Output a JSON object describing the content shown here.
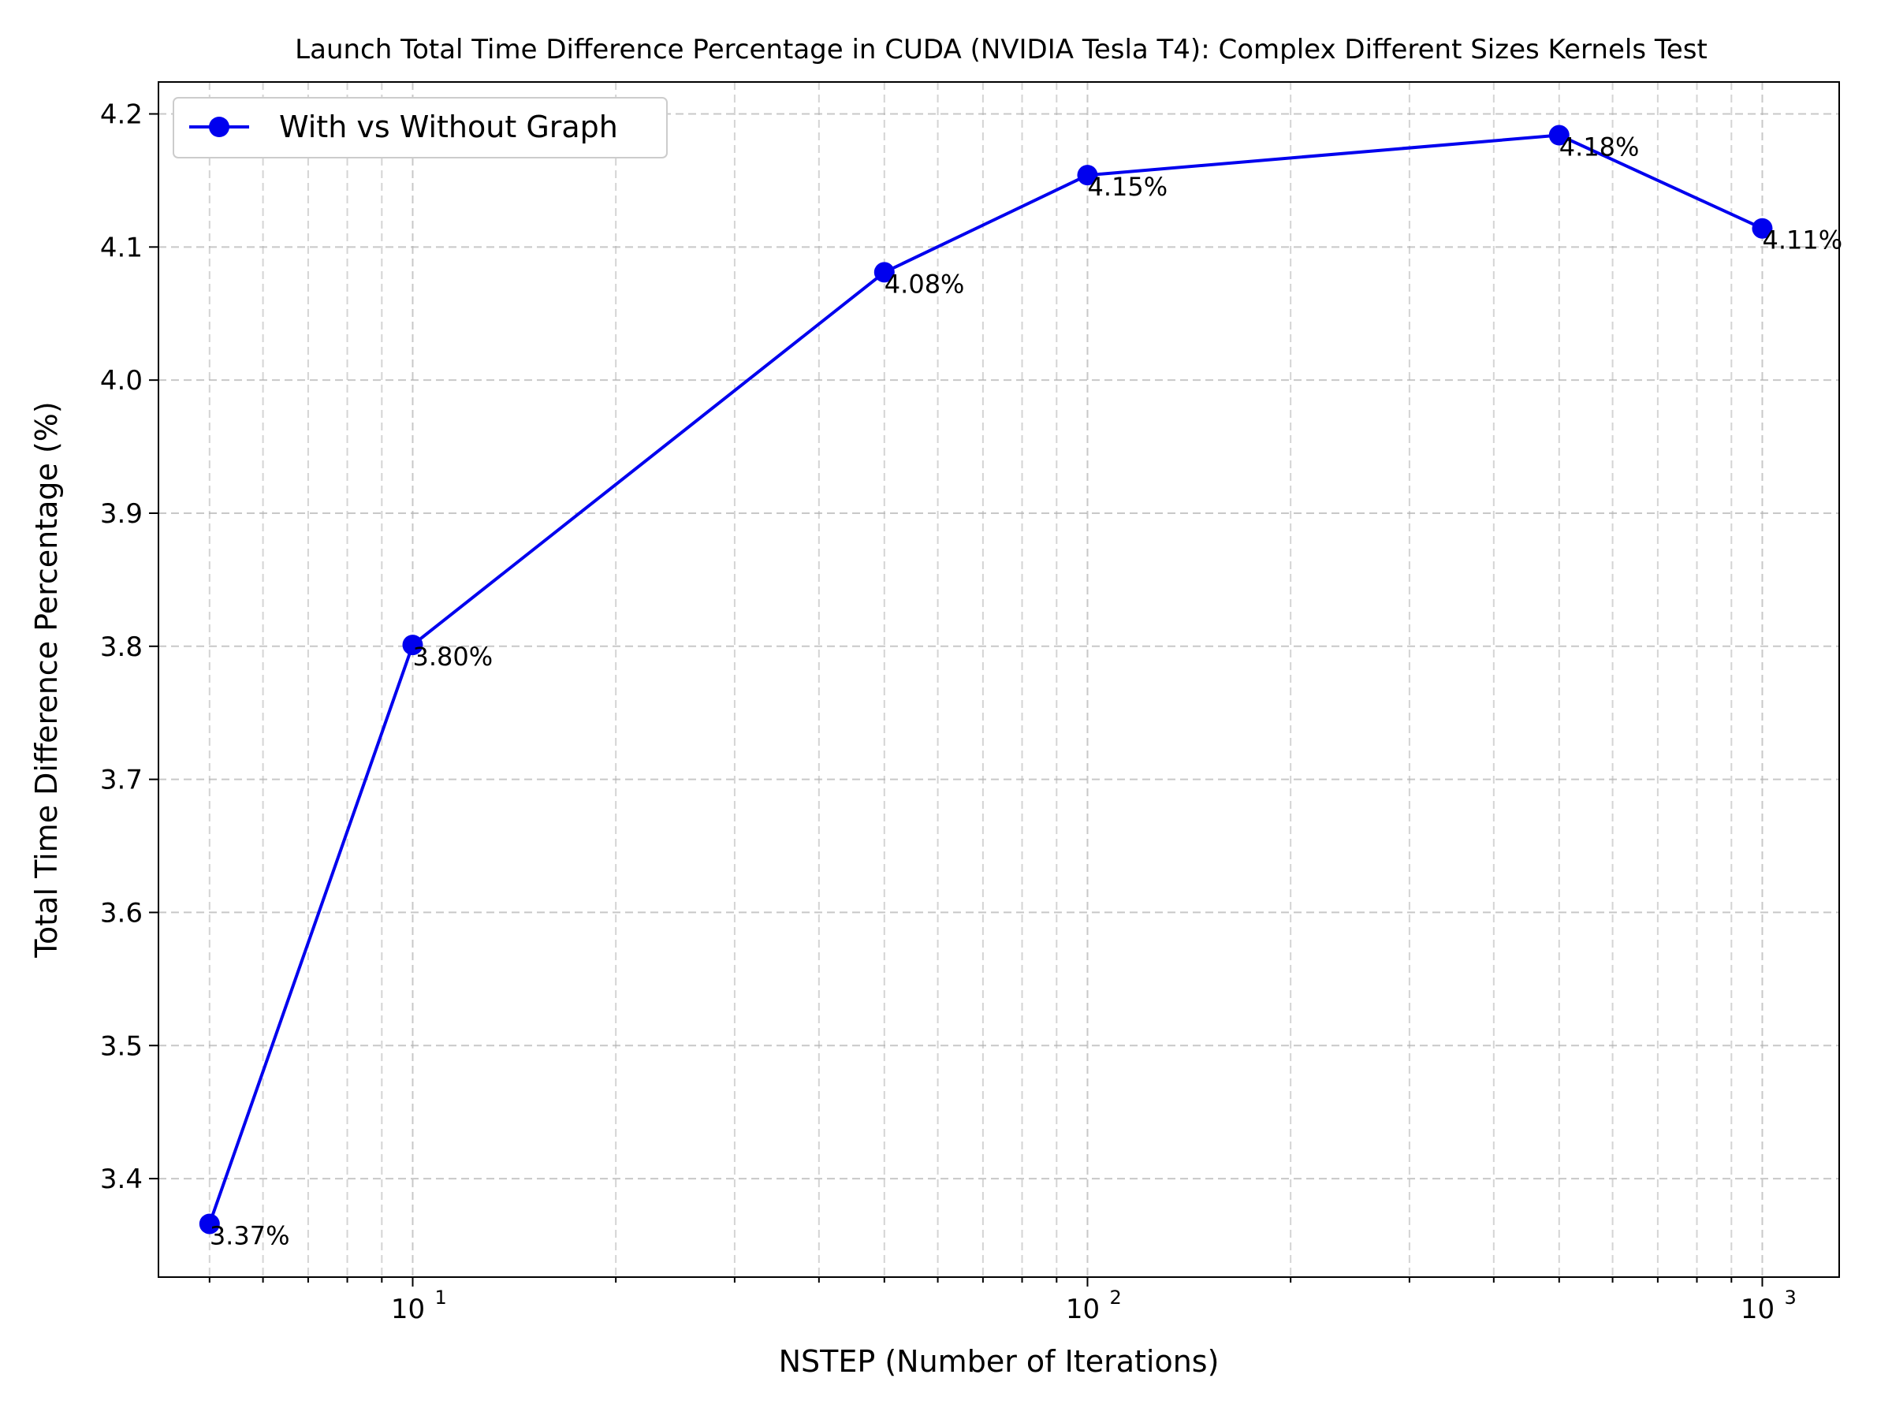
{
  "chart_data": {
    "type": "line",
    "title": "Launch Total Time Difference Percentage in CUDA (NVIDIA Tesla T4): Complex Different Sizes Kernels Test",
    "xlabel": "NSTEP (Number of Iterations)",
    "ylabel": "Total Time Difference Percentage (%)",
    "xscale": "log",
    "xlim": [
      4.2,
      1300
    ],
    "ylim": [
      3.326,
      4.224
    ],
    "x_ticks": [
      {
        "value": 10,
        "base": "10",
        "exp": "1"
      },
      {
        "value": 100,
        "base": "10",
        "exp": "2"
      },
      {
        "value": 1000,
        "base": "10",
        "exp": "3"
      }
    ],
    "y_ticks": [
      "3.4",
      "3.5",
      "3.6",
      "3.7",
      "3.8",
      "3.9",
      "4.0",
      "4.1",
      "4.2"
    ],
    "grid": true,
    "legend_position": "top-left",
    "series": [
      {
        "name": "With vs Without Graph",
        "color": "#0000ee",
        "x": [
          5,
          10,
          50,
          100,
          500,
          1000
        ],
        "y": [
          3.366,
          3.801,
          4.081,
          4.154,
          4.184,
          4.114
        ],
        "labels": [
          "3.37%",
          "3.80%",
          "4.08%",
          "4.15%",
          "4.18%",
          "4.11%"
        ]
      }
    ]
  }
}
